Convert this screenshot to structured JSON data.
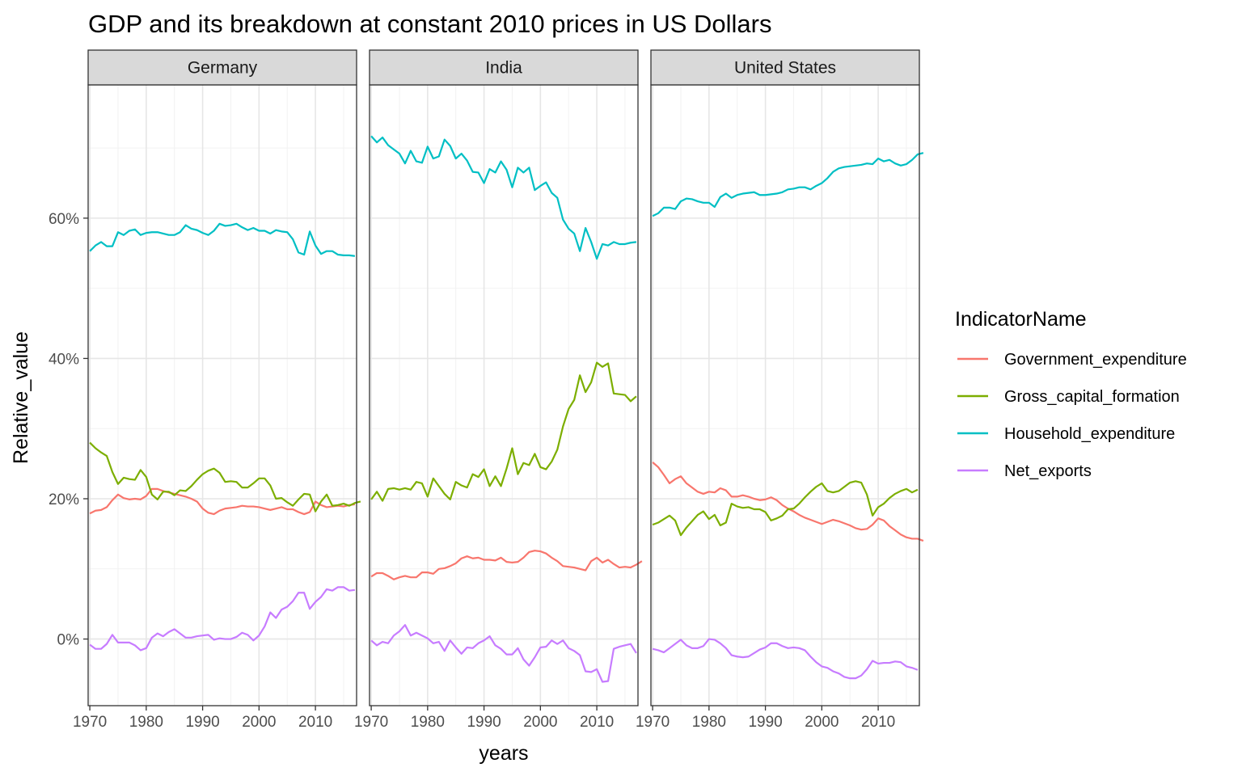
{
  "chart_data": {
    "type": "line",
    "title": "GDP and its breakdown at constant 2010 prices in US Dollars",
    "xlabel": "years",
    "ylabel": "Relative_value",
    "xlim": [
      1969.7,
      2017.3
    ],
    "ylim": [
      -9.5,
      79
    ],
    "x_ticks": [
      1970,
      1980,
      1990,
      2000,
      2010
    ],
    "x_tick_labels": [
      "1970",
      "1980",
      "1990",
      "2000",
      "2010"
    ],
    "y_ticks": [
      0,
      20,
      40,
      60
    ],
    "y_tick_labels": [
      "0%",
      "20%",
      "40%",
      "60%"
    ],
    "grid": true,
    "legend": {
      "title": "IndicatorName",
      "placement": "right",
      "entries": [
        {
          "name": "Government_expenditure",
          "color": "#F8766D"
        },
        {
          "name": "Gross_capital_formation",
          "color": "#7CAE00"
        },
        {
          "name": "Household_expenditure",
          "color": "#00BFC4"
        },
        {
          "name": "Net_exports",
          "color": "#C77CFF"
        }
      ]
    },
    "panels": [
      {
        "name": "Germany",
        "x_start": 1970,
        "series": [
          {
            "name": "Government_expenditure",
            "values": [
              17.9,
              18.3,
              18.4,
              18.8,
              19.8,
              20.6,
              20.1,
              19.9,
              20.0,
              19.9,
              20.4,
              21.4,
              21.4,
              21.1,
              20.9,
              20.7,
              20.5,
              20.3,
              20.0,
              19.6,
              18.6,
              18.0,
              17.8,
              18.3,
              18.6,
              18.7,
              18.8,
              19.0,
              18.9,
              18.9,
              18.8,
              18.6,
              18.4,
              18.6,
              18.8,
              18.5,
              18.5,
              18.1,
              17.8,
              18.1,
              19.6,
              19.1,
              18.8,
              18.9,
              19.0,
              18.9,
              19.1,
              19.2
            ]
          },
          {
            "name": "Gross_capital_formation",
            "values": [
              28.0,
              27.2,
              26.6,
              26.1,
              23.8,
              22.1,
              23.0,
              22.8,
              22.7,
              24.1,
              23.1,
              20.6,
              19.9,
              21.0,
              21.0,
              20.5,
              21.2,
              21.1,
              21.8,
              22.7,
              23.5,
              24.0,
              24.3,
              23.7,
              22.4,
              22.5,
              22.4,
              21.6,
              21.6,
              22.2,
              22.9,
              22.9,
              21.9,
              20.0,
              20.1,
              19.5,
              19.0,
              19.9,
              20.7,
              20.6,
              18.2,
              19.6,
              20.6,
              19.0,
              19.1,
              19.3,
              19.0,
              19.4,
              19.6
            ]
          },
          {
            "name": "Household_expenditure",
            "values": [
              55.3,
              56.1,
              56.6,
              56.0,
              56.0,
              58.0,
              57.6,
              58.2,
              58.4,
              57.6,
              57.9,
              58.0,
              58.0,
              57.8,
              57.6,
              57.6,
              58.0,
              59.0,
              58.5,
              58.3,
              57.9,
              57.6,
              58.2,
              59.2,
              58.9,
              59.0,
              59.2,
              58.7,
              58.3,
              58.6,
              58.2,
              58.2,
              57.8,
              58.3,
              58.1,
              58.0,
              57.0,
              55.1,
              54.8,
              58.1,
              56.1,
              54.9,
              55.3,
              55.3,
              54.8,
              54.7,
              54.7,
              54.6
            ]
          },
          {
            "name": "Net_exports",
            "values": [
              -0.8,
              -1.4,
              -1.4,
              -0.7,
              0.6,
              -0.5,
              -0.5,
              -0.5,
              -0.9,
              -1.6,
              -1.3,
              0.2,
              0.8,
              0.4,
              1.0,
              1.4,
              0.8,
              0.2,
              0.2,
              0.4,
              0.5,
              0.6,
              -0.1,
              0.1,
              0.0,
              0.0,
              0.3,
              0.9,
              0.6,
              -0.2,
              0.5,
              1.8,
              3.8,
              3.0,
              4.2,
              4.6,
              5.4,
              6.6,
              6.6,
              4.3,
              5.3,
              6.0,
              7.1,
              6.9,
              7.4,
              7.4,
              6.9,
              7.0
            ]
          }
        ]
      },
      {
        "name": "India",
        "x_start": 1970,
        "series": [
          {
            "name": "Government_expenditure",
            "values": [
              8.9,
              9.4,
              9.4,
              9.0,
              8.5,
              8.8,
              9.0,
              8.8,
              8.8,
              9.5,
              9.5,
              9.3,
              10.0,
              10.1,
              10.4,
              10.8,
              11.5,
              11.8,
              11.5,
              11.6,
              11.3,
              11.3,
              11.2,
              11.6,
              11.0,
              10.9,
              11.0,
              11.6,
              12.4,
              12.6,
              12.5,
              12.2,
              11.6,
              11.1,
              10.4,
              10.3,
              10.2,
              10.0,
              9.8,
              11.1,
              11.6,
              10.9,
              11.3,
              10.7,
              10.2,
              10.3,
              10.2,
              10.6,
              11.1
            ]
          },
          {
            "name": "Gross_capital_formation",
            "values": [
              19.9,
              21.0,
              19.7,
              21.4,
              21.5,
              21.3,
              21.5,
              21.3,
              22.4,
              22.2,
              20.3,
              22.9,
              21.8,
              20.7,
              19.9,
              22.4,
              21.9,
              21.6,
              23.5,
              23.1,
              24.2,
              21.8,
              23.2,
              21.8,
              24.3,
              27.2,
              23.5,
              25.1,
              24.8,
              26.4,
              24.5,
              24.2,
              25.3,
              27.0,
              30.3,
              32.8,
              34.1,
              37.6,
              35.2,
              36.6,
              39.4,
              38.8,
              39.3,
              35.0,
              34.9,
              34.8,
              33.9,
              34.6
            ]
          },
          {
            "name": "Household_expenditure",
            "values": [
              71.7,
              70.8,
              71.5,
              70.4,
              69.8,
              69.2,
              67.8,
              69.6,
              68.1,
              67.9,
              70.2,
              68.5,
              68.8,
              71.2,
              70.3,
              68.5,
              69.2,
              68.2,
              66.6,
              66.5,
              65.0,
              67.0,
              66.5,
              68.1,
              66.9,
              64.4,
              67.2,
              66.5,
              67.2,
              64.0,
              64.6,
              65.1,
              63.6,
              62.9,
              59.8,
              58.5,
              57.8,
              55.3,
              58.6,
              56.6,
              54.2,
              56.3,
              56.1,
              56.6,
              56.3,
              56.3,
              56.5,
              56.6
            ]
          },
          {
            "name": "Net_exports",
            "values": [
              -0.2,
              -0.9,
              -0.4,
              -0.6,
              0.5,
              1.1,
              2.0,
              0.5,
              0.9,
              0.5,
              0.1,
              -0.6,
              -0.4,
              -1.7,
              -0.2,
              -1.2,
              -2.1,
              -1.2,
              -1.3,
              -0.6,
              -0.2,
              0.4,
              -0.9,
              -1.4,
              -2.2,
              -2.2,
              -1.3,
              -2.9,
              -3.8,
              -2.6,
              -1.2,
              -1.1,
              -0.2,
              -0.7,
              -0.2,
              -1.3,
              -1.7,
              -2.3,
              -4.6,
              -4.7,
              -4.3,
              -6.1,
              -6.0,
              -1.4,
              -1.1,
              -0.9,
              -0.7,
              -2.0
            ]
          }
        ]
      },
      {
        "name": "United States",
        "x_start": 1970,
        "series": [
          {
            "name": "Government_expenditure",
            "values": [
              25.2,
              24.5,
              23.4,
              22.2,
              22.8,
              23.2,
              22.2,
              21.6,
              21.0,
              20.7,
              21.0,
              20.9,
              21.5,
              21.2,
              20.3,
              20.3,
              20.5,
              20.3,
              20.0,
              19.8,
              19.9,
              20.2,
              19.8,
              19.1,
              18.6,
              18.2,
              17.7,
              17.3,
              17.0,
              16.7,
              16.4,
              16.7,
              17.0,
              16.8,
              16.5,
              16.2,
              15.8,
              15.6,
              15.7,
              16.3,
              17.2,
              16.9,
              16.1,
              15.5,
              14.9,
              14.5,
              14.3,
              14.3,
              14.0
            ]
          },
          {
            "name": "Gross_capital_formation",
            "values": [
              16.3,
              16.6,
              17.1,
              17.6,
              16.9,
              14.8,
              15.9,
              16.8,
              17.7,
              18.2,
              17.1,
              17.7,
              16.2,
              16.6,
              19.3,
              18.9,
              18.7,
              18.8,
              18.5,
              18.5,
              18.1,
              16.9,
              17.2,
              17.6,
              18.5,
              18.6,
              19.3,
              20.2,
              21.0,
              21.7,
              22.2,
              21.1,
              20.9,
              21.1,
              21.7,
              22.3,
              22.5,
              22.3,
              20.6,
              17.6,
              18.8,
              19.3,
              20.1,
              20.7,
              21.1,
              21.4,
              20.9,
              21.3
            ]
          },
          {
            "name": "Household_expenditure",
            "values": [
              60.3,
              60.7,
              61.5,
              61.5,
              61.3,
              62.4,
              62.8,
              62.7,
              62.4,
              62.2,
              62.2,
              61.6,
              63.0,
              63.5,
              62.9,
              63.3,
              63.5,
              63.6,
              63.7,
              63.3,
              63.3,
              63.4,
              63.5,
              63.7,
              64.1,
              64.2,
              64.4,
              64.4,
              64.1,
              64.6,
              65.0,
              65.7,
              66.6,
              67.1,
              67.3,
              67.4,
              67.5,
              67.6,
              67.8,
              67.7,
              68.5,
              68.1,
              68.3,
              67.8,
              67.5,
              67.7,
              68.3,
              69.1,
              69.3
            ]
          },
          {
            "name": "Net_exports",
            "values": [
              -1.4,
              -1.6,
              -1.9,
              -1.3,
              -0.7,
              -0.1,
              -0.9,
              -1.3,
              -1.3,
              -1.0,
              0.0,
              -0.1,
              -0.6,
              -1.3,
              -2.3,
              -2.5,
              -2.6,
              -2.5,
              -2.0,
              -1.5,
              -1.2,
              -0.6,
              -0.6,
              -1.0,
              -1.3,
              -1.2,
              -1.3,
              -1.6,
              -2.5,
              -3.3,
              -3.9,
              -4.1,
              -4.6,
              -4.9,
              -5.4,
              -5.6,
              -5.6,
              -5.2,
              -4.3,
              -3.1,
              -3.5,
              -3.4,
              -3.4,
              -3.2,
              -3.3,
              -3.9,
              -4.1,
              -4.4
            ]
          }
        ]
      }
    ]
  }
}
